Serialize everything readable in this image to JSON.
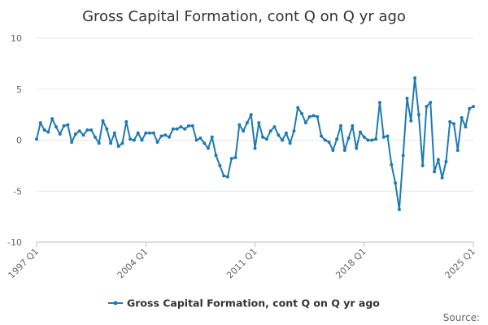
{
  "chart_data": {
    "type": "line",
    "title": "Gross Capital Formation, cont Q on Q yr ago",
    "xlabel": "",
    "ylabel": "",
    "ylim": [
      -10,
      10
    ],
    "yticks": [
      "10",
      "5",
      "0",
      "-5",
      "-10"
    ],
    "xticks": [
      "1997 Q1",
      "2004 Q1",
      "2011 Q1",
      "2018 Q1",
      "2025 Q1"
    ],
    "grid": true,
    "legend_position": "bottom",
    "series": [
      {
        "name": "Gross Capital Formation, cont Q on Q yr ago",
        "color": "#1f7ab3",
        "x_start": "1997 Q1",
        "values": [
          0.1,
          1.7,
          1.0,
          0.8,
          2.1,
          1.3,
          0.6,
          1.4,
          1.5,
          -0.2,
          0.6,
          0.9,
          0.5,
          1.0,
          1.0,
          0.3,
          -0.3,
          1.9,
          1.1,
          -0.3,
          0.7,
          -0.6,
          -0.3,
          1.8,
          0.1,
          0.0,
          0.7,
          0.0,
          0.7,
          0.7,
          0.7,
          -0.2,
          0.4,
          0.5,
          0.3,
          1.1,
          1.1,
          1.3,
          1.1,
          1.4,
          1.4,
          0.0,
          0.2,
          -0.3,
          -0.8,
          0.3,
          -1.5,
          -2.5,
          -3.5,
          -3.6,
          -1.8,
          -1.7,
          1.5,
          0.9,
          1.7,
          2.5,
          -0.8,
          1.7,
          0.3,
          0.1,
          0.9,
          1.3,
          0.5,
          0.0,
          0.7,
          -0.3,
          0.9,
          3.2,
          2.6,
          1.7,
          2.3,
          2.4,
          2.3,
          0.4,
          0.0,
          -0.2,
          -1.0,
          0.1,
          1.4,
          -1.0,
          0.2,
          1.4,
          -0.8,
          0.8,
          0.3,
          0.0,
          0.0,
          0.1,
          3.7,
          0.3,
          0.4,
          -2.4,
          -4.2,
          -6.8,
          -1.5,
          4.1,
          1.9,
          6.1,
          2.5,
          -2.5,
          3.3,
          3.7,
          -3.1,
          -1.9,
          -3.7,
          -2.1,
          1.8,
          1.6,
          -1.0,
          2.2,
          1.3,
          3.1,
          3.3
        ]
      }
    ]
  },
  "source_label": "Source:"
}
